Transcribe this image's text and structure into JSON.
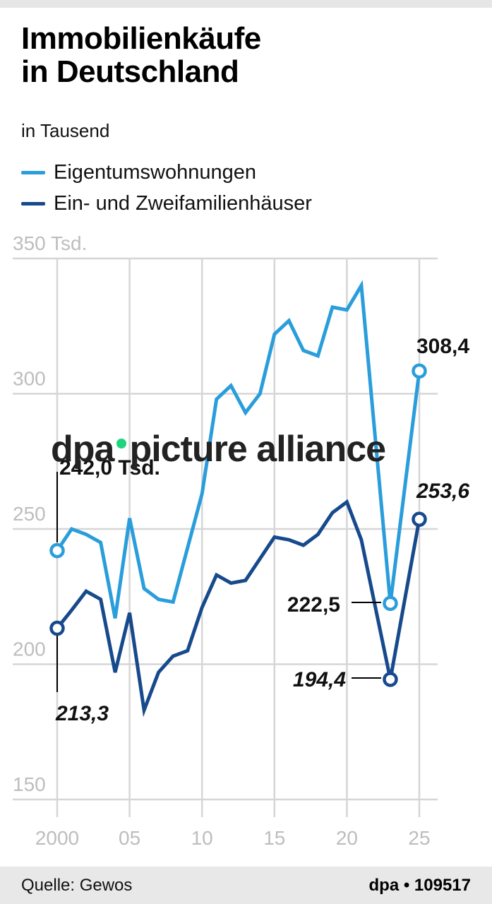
{
  "header": {
    "title_line1": "Immobilienkäufe",
    "title_line2": "in Deutschland",
    "subtitle": "in Tausend"
  },
  "legend": [
    {
      "label": "Eigentumswohnungen",
      "color": "#2a9ddb"
    },
    {
      "label": "Ein- und Zweifamilienhäuser",
      "color": "#174a8c"
    }
  ],
  "footer": {
    "source": "Quelle: Gewos",
    "credit": "dpa • 109517"
  },
  "watermark": {
    "left": "dpa",
    "right": "picture alliance",
    "dot_color": "#1fd47f"
  },
  "annotations": {
    "first_light": "242,0 Tsd.",
    "first_dark": "213,3",
    "last_light": "308,4",
    "last_dark": "253,6",
    "dip_light": "222,5",
    "dip_dark": "194,4"
  },
  "chart_data": {
    "type": "line",
    "title": "Immobilienkäufe in Deutschland",
    "subtitle": "in Tausend",
    "xlabel": "",
    "ylabel": "",
    "ylim": [
      150,
      350
    ],
    "yticks": [
      150,
      200,
      250,
      300,
      350
    ],
    "ytick_labels": [
      "150",
      "200",
      "250",
      "300",
      "350 Tsd."
    ],
    "xticks": [
      2000,
      2005,
      2010,
      2015,
      2020,
      2025
    ],
    "xtick_labels": [
      "2000",
      "05",
      "10",
      "15",
      "20",
      "25"
    ],
    "grid": true,
    "legend_position": "top-left",
    "x": [
      2000,
      2001,
      2002,
      2003,
      2004,
      2005,
      2006,
      2007,
      2008,
      2009,
      2010,
      2011,
      2012,
      2013,
      2014,
      2015,
      2016,
      2017,
      2018,
      2019,
      2020,
      2021,
      2023,
      2025
    ],
    "series": [
      {
        "name": "Eigentumswohnungen",
        "color": "#2a9ddb",
        "values": [
          242.0,
          250,
          248,
          245,
          217,
          254,
          228,
          224,
          223,
          243,
          263,
          298,
          303,
          293,
          300,
          322,
          327,
          316,
          314,
          332,
          331,
          340,
          222.5,
          308.4
        ]
      },
      {
        "name": "Ein- und Zweifamilienhäuser",
        "color": "#174a8c",
        "values": [
          213.3,
          220,
          227,
          224,
          197,
          219,
          183,
          197,
          203,
          205,
          221,
          233,
          230,
          231,
          239,
          247,
          246,
          244,
          248,
          256,
          260,
          246,
          194.4,
          253.6
        ]
      }
    ],
    "labeled_points": [
      {
        "series": "Eigentumswohnungen",
        "x": 2000,
        "label": "242,0 Tsd."
      },
      {
        "series": "Ein- und Zweifamilienhäuser",
        "x": 2000,
        "label": "213,3"
      },
      {
        "series": "Eigentumswohnungen",
        "x": 2023,
        "label": "222,5"
      },
      {
        "series": "Ein- und Zweifamilienhäuser",
        "x": 2023,
        "label": "194,4"
      },
      {
        "series": "Eigentumswohnungen",
        "x": 2025,
        "label": "308,4"
      },
      {
        "series": "Ein- und Zweifamilienhäuser",
        "x": 2025,
        "label": "253,6"
      }
    ]
  }
}
